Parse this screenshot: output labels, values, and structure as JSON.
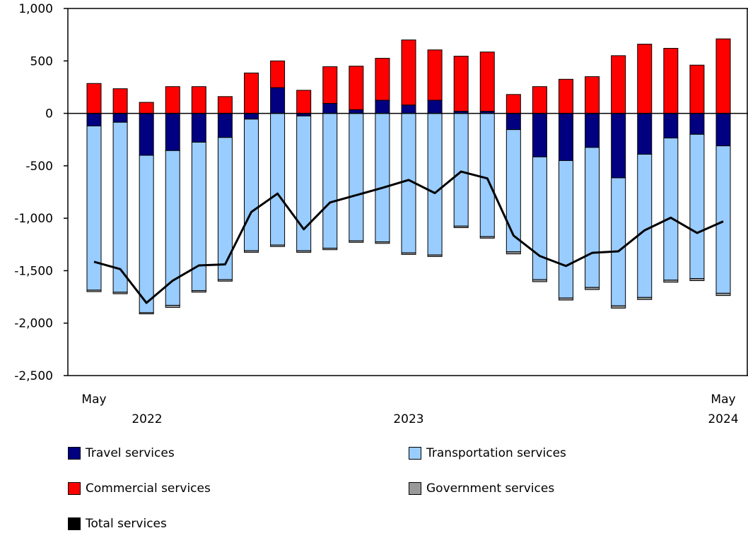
{
  "colors": {
    "travel": "#000080",
    "transportation": "#99ccff",
    "commercial": "#ff0000",
    "government": "#999999",
    "total": "#000000"
  },
  "chart_data": {
    "type": "bar",
    "stacked": true,
    "categories": [
      "2022-05",
      "2022-06",
      "2022-07",
      "2022-08",
      "2022-09",
      "2022-10",
      "2022-11",
      "2022-12",
      "2023-01",
      "2023-02",
      "2023-03",
      "2023-04",
      "2023-05",
      "2023-06",
      "2023-07",
      "2023-08",
      "2023-09",
      "2023-10",
      "2023-11",
      "2023-12",
      "2024-01",
      "2024-02",
      "2024-03",
      "2024-04",
      "2024-05"
    ],
    "x_tick_labels": [
      {
        "index": 0,
        "month": "May",
        "year": "2022"
      },
      {
        "index": 12,
        "month": "",
        "year": "2023"
      },
      {
        "index": 24,
        "month": "May",
        "year": "2024"
      }
    ],
    "ylim": [
      -2500,
      1000
    ],
    "yticks": [
      1000,
      500,
      0,
      -500,
      -1000,
      -1500,
      -2000,
      -2500
    ],
    "ytick_labels": [
      "1,000",
      "500",
      "0",
      "-500",
      "-1,000",
      "-1,500",
      "-2,000",
      "-2,500"
    ],
    "grid": false,
    "legend_position": "bottom",
    "series": [
      {
        "name": "Travel services",
        "key": "travel",
        "kind": "bar",
        "values": [
          -120,
          -85,
          -400,
          -355,
          -275,
          -230,
          -55,
          245,
          -25,
          95,
          35,
          125,
          80,
          125,
          20,
          20,
          -155,
          -415,
          -450,
          -325,
          -615,
          -390,
          -235,
          -200,
          -310
        ]
      },
      {
        "name": "Transportation services",
        "key": "transportation",
        "kind": "bar",
        "values": [
          -1565,
          -1620,
          -1500,
          -1475,
          -1415,
          -1355,
          -1255,
          -1255,
          -1285,
          -1285,
          -1215,
          -1225,
          -1330,
          -1350,
          -1075,
          -1175,
          -1165,
          -1170,
          -1310,
          -1335,
          -1220,
          -1365,
          -1355,
          -1375,
          -1405
        ]
      },
      {
        "name": "Commercial services",
        "key": "commercial",
        "kind": "bar",
        "values": [
          285,
          235,
          105,
          255,
          255,
          160,
          385,
          255,
          220,
          350,
          415,
          400,
          620,
          480,
          525,
          565,
          180,
          255,
          325,
          350,
          550,
          660,
          620,
          460,
          710
        ]
      },
      {
        "name": "Government services",
        "key": "government",
        "kind": "bar",
        "values": [
          -15,
          -15,
          -12,
          -20,
          -15,
          -15,
          -15,
          -15,
          -15,
          -15,
          -15,
          -15,
          -15,
          -15,
          -15,
          -15,
          -20,
          -20,
          -20,
          -20,
          -22,
          -20,
          -20,
          -20,
          -22
        ]
      },
      {
        "name": "Total services",
        "key": "total",
        "kind": "line",
        "values": [
          -1415,
          -1485,
          -1807,
          -1595,
          -1450,
          -1440,
          -940,
          -765,
          -1105,
          -850,
          -780,
          -710,
          -635,
          -760,
          -555,
          -620,
          -1165,
          -1360,
          -1455,
          -1330,
          -1315,
          -1115,
          -995,
          -1140,
          -1030
        ]
      }
    ]
  }
}
